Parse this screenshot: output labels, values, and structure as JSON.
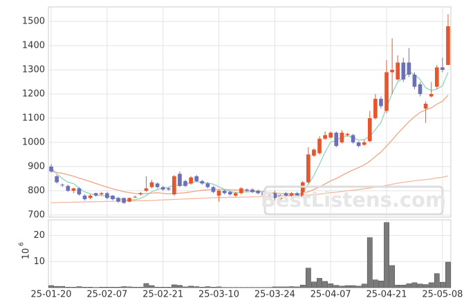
{
  "chart_data": [
    {
      "type": "candlestick",
      "categories": [
        "25-01-20",
        null,
        null,
        null,
        null,
        null,
        null,
        null,
        null,
        null,
        "25-02-07",
        null,
        null,
        null,
        null,
        null,
        null,
        null,
        null,
        null,
        "25-02-21",
        null,
        null,
        null,
        null,
        null,
        null,
        null,
        null,
        null,
        "25-03-10",
        null,
        null,
        null,
        null,
        null,
        null,
        null,
        null,
        null,
        "25-03-24",
        null,
        null,
        null,
        null,
        null,
        null,
        null,
        null,
        null,
        "25-04-07",
        null,
        null,
        null,
        null,
        null,
        null,
        null,
        null,
        null,
        "25-04-21",
        null,
        null,
        null,
        null,
        null,
        null,
        null,
        null,
        null,
        "25-05-08",
        null
      ],
      "open": [
        900,
        860,
        825,
        820,
        800,
        810,
        780,
        770,
        790,
        785,
        790,
        780,
        770,
        770,
        755,
        772,
        785,
        800,
        815,
        830,
        815,
        810,
        785,
        870,
        840,
        830,
        860,
        840,
        830,
        815,
        780,
        800,
        795,
        780,
        790,
        805,
        805,
        800,
        795,
        790,
        790,
        765,
        790,
        780,
        790,
        775,
        835,
        945,
        955,
        1015,
        1020,
        1040,
        1000,
        1030,
        1030,
        1000,
        990,
        1005,
        1100,
        1180,
        1130,
        1290,
        1260,
        1330,
        1330,
        1280,
        1240,
        1140,
        1190,
        1230,
        1310,
        1320
      ],
      "high": [
        910,
        865,
        830,
        825,
        812,
        815,
        785,
        785,
        792,
        795,
        795,
        782,
        775,
        772,
        772,
        780,
        795,
        860,
        845,
        835,
        820,
        815,
        865,
        880,
        845,
        860,
        865,
        845,
        835,
        820,
        805,
        805,
        800,
        795,
        815,
        810,
        810,
        805,
        800,
        795,
        800,
        785,
        795,
        795,
        795,
        840,
        980,
        975,
        1025,
        1045,
        1045,
        1045,
        1050,
        1040,
        1035,
        1005,
        1010,
        1130,
        1200,
        1190,
        1340,
        1430,
        1360,
        1350,
        1390,
        1290,
        1250,
        1170,
        1250,
        1320,
        1350,
        1530
      ],
      "low": [
        875,
        830,
        815,
        795,
        790,
        780,
        760,
        765,
        775,
        780,
        765,
        760,
        750,
        745,
        752,
        770,
        780,
        795,
        810,
        810,
        800,
        800,
        780,
        815,
        815,
        825,
        835,
        825,
        810,
        790,
        755,
        785,
        780,
        775,
        785,
        795,
        790,
        785,
        775,
        780,
        760,
        760,
        775,
        775,
        775,
        770,
        830,
        940,
        950,
        1010,
        1015,
        980,
        995,
        1025,
        995,
        980,
        985,
        1000,
        1095,
        1140,
        1120,
        1200,
        1255,
        1250,
        1270,
        1220,
        1190,
        1080,
        1185,
        1220,
        1290,
        1320
      ],
      "close": [
        880,
        835,
        822,
        800,
        810,
        785,
        765,
        780,
        780,
        790,
        770,
        765,
        755,
        750,
        770,
        775,
        790,
        810,
        835,
        815,
        805,
        805,
        860,
        820,
        820,
        855,
        840,
        830,
        815,
        795,
        800,
        790,
        785,
        790,
        810,
        800,
        795,
        790,
        780,
        785,
        770,
        780,
        780,
        790,
        780,
        835,
        950,
        970,
        1015,
        1030,
        1040,
        985,
        1040,
        1035,
        1000,
        985,
        1000,
        1100,
        1180,
        1150,
        1290,
        1300,
        1330,
        1260,
        1280,
        1230,
        1200,
        1160,
        1200,
        1310,
        1300,
        1480
      ],
      "colors": {
        "up": "#e4572e",
        "down": "#6b70b8"
      },
      "series": [
        {
          "color": "#8fd4b6",
          "values": [
            895,
            870,
            850,
            835,
            830,
            810,
            795,
            788,
            782,
            780,
            778,
            772,
            768,
            762,
            762,
            763,
            768,
            780,
            796,
            805,
            812,
            814,
            824,
            821,
            826,
            832,
            839,
            833,
            832,
            827,
            816,
            806,
            797,
            792,
            795,
            795,
            796,
            797,
            795,
            790,
            784,
            781,
            779,
            781,
            780,
            793,
            827,
            863,
            910,
            960,
            1001,
            1008,
            1022,
            1027,
            1020,
            1009,
            1012,
            1024,
            1053,
            1083,
            1144,
            1204,
            1250,
            1266,
            1292,
            1280,
            1260,
            1226,
            1214,
            1220,
            1234,
            1290
          ]
        },
        {
          "color": "#eba585",
          "values": [
            880,
            876,
            872,
            866,
            860,
            852,
            845,
            838,
            830,
            822,
            815,
            808,
            802,
            796,
            792,
            789,
            788,
            788,
            790,
            792,
            789,
            787,
            789,
            790,
            792,
            795,
            799,
            802,
            804,
            805,
            805,
            805,
            804,
            803,
            802,
            801,
            799,
            798,
            795,
            793,
            791,
            789,
            787,
            787,
            786,
            788,
            796,
            805,
            816,
            828,
            841,
            850,
            863,
            875,
            886,
            896,
            907,
            922,
            942,
            960,
            985,
            1010,
            1037,
            1061,
            1086,
            1106,
            1124,
            1134,
            1143,
            1158,
            1170,
            1195
          ]
        },
        {
          "color": "#f2b9a0",
          "values": [
            750,
            751,
            752,
            752,
            753,
            753,
            754,
            754,
            755,
            755,
            756,
            756,
            757,
            757,
            758,
            758,
            759,
            759,
            760,
            761,
            762,
            763,
            764,
            765,
            766,
            767,
            768,
            769,
            770,
            771,
            772,
            772,
            773,
            773,
            774,
            774,
            775,
            775,
            776,
            776,
            777,
            777,
            778,
            778,
            779,
            780,
            782,
            784,
            786,
            789,
            792,
            794,
            797,
            800,
            802,
            805,
            808,
            811,
            815,
            818,
            822,
            827,
            831,
            835,
            838,
            841,
            844,
            846,
            849,
            853,
            856,
            861
          ]
        }
      ],
      "ylim": [
        691,
        1560
      ],
      "yticks": [
        700,
        800,
        900,
        1000,
        1100,
        1200,
        1300,
        1400,
        1500
      ],
      "grid": true
    },
    {
      "type": "bar",
      "values": [
        0.8,
        0.5,
        0.5,
        0.2,
        0.2,
        0.4,
        0.2,
        0.2,
        0.1,
        0.2,
        0.2,
        0.2,
        0.2,
        0.4,
        0.3,
        0.2,
        0.2,
        1.6,
        0.8,
        0.2,
        0.2,
        0.2,
        1.1,
        0.9,
        0.3,
        0.6,
        0.4,
        0.2,
        0.4,
        0.2,
        0.3,
        0.1,
        0.1,
        0.1,
        0.1,
        0.1,
        0.1,
        0.1,
        0.1,
        0.1,
        0.3,
        0.3,
        0.3,
        0.4,
        0.3,
        1.0,
        7.5,
        2.2,
        3.6,
        2.4,
        1.5,
        0.9,
        0.6,
        0.8,
        0.8,
        0.6,
        1.4,
        19.2,
        3.0,
        2.6,
        25.0,
        8.5,
        1.0,
        1.0,
        1.5,
        1.9,
        1.4,
        1.2,
        1.9,
        5.4,
        2.1,
        9.8
      ],
      "color": "#7a7a7a",
      "y_label": "10",
      "y_label_exponent": "6",
      "ylim": [
        0,
        26
      ],
      "yticks": [
        10,
        20
      ],
      "grid": true
    }
  ],
  "watermark": "BestListens.com"
}
